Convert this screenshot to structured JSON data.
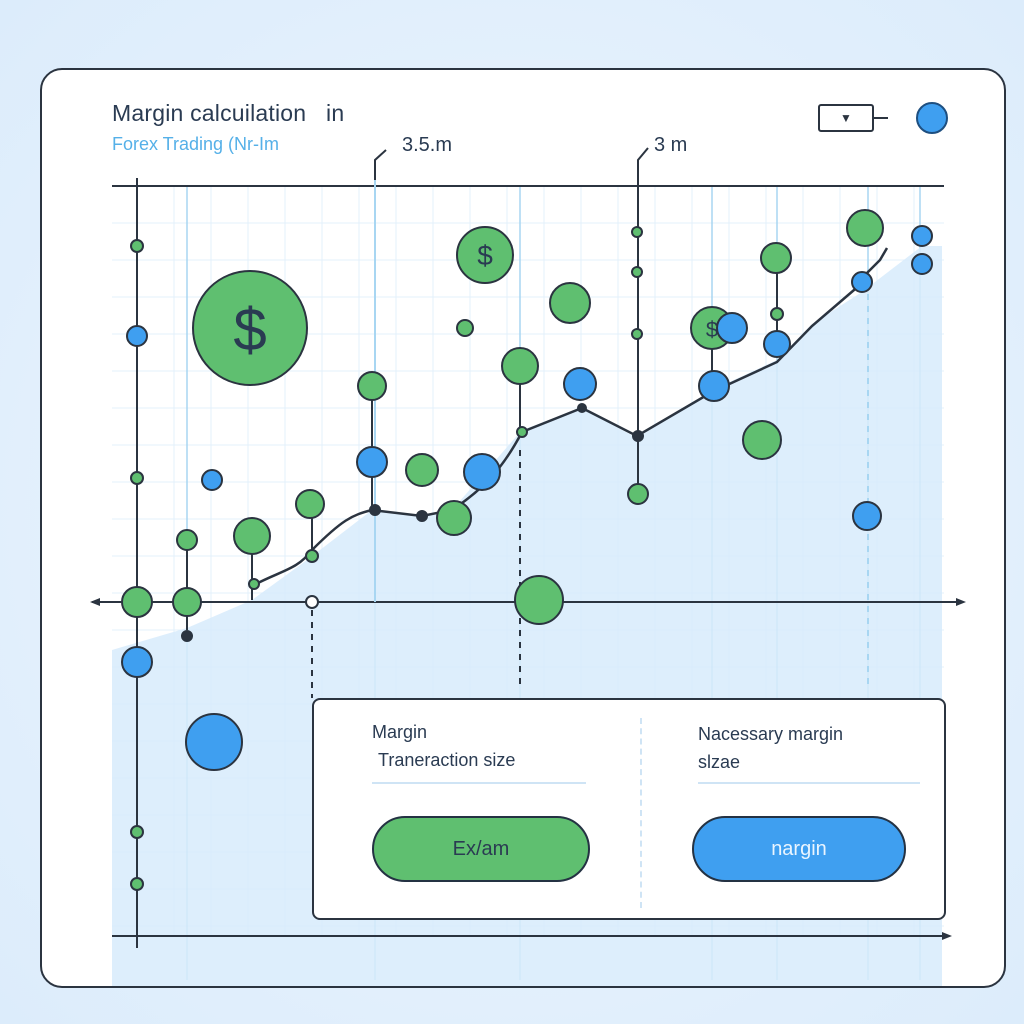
{
  "header": {
    "title": "Margin calcuilation   in",
    "subtitle": "Forex Trading (Nr-Im"
  },
  "markers": {
    "left": "3.5.m",
    "right": "3 m"
  },
  "controls": {
    "dropdown_icon": "chevron-down-icon",
    "status_dot_color": "#3f9ff0"
  },
  "panel": {
    "col1_title": "Margin",
    "col1_subtitle": "Traneraction size",
    "col2_title": "Nacessary margin",
    "col2_subtitle": "slzae",
    "btn_left_label": "Ex/am",
    "btn_right_label": "nargin"
  },
  "colors": {
    "green": "#5fbf70",
    "blue": "#3f9ff0",
    "line": "#2b3440",
    "area": "#d7ebfb",
    "grid": "#e3f0fb"
  }
}
